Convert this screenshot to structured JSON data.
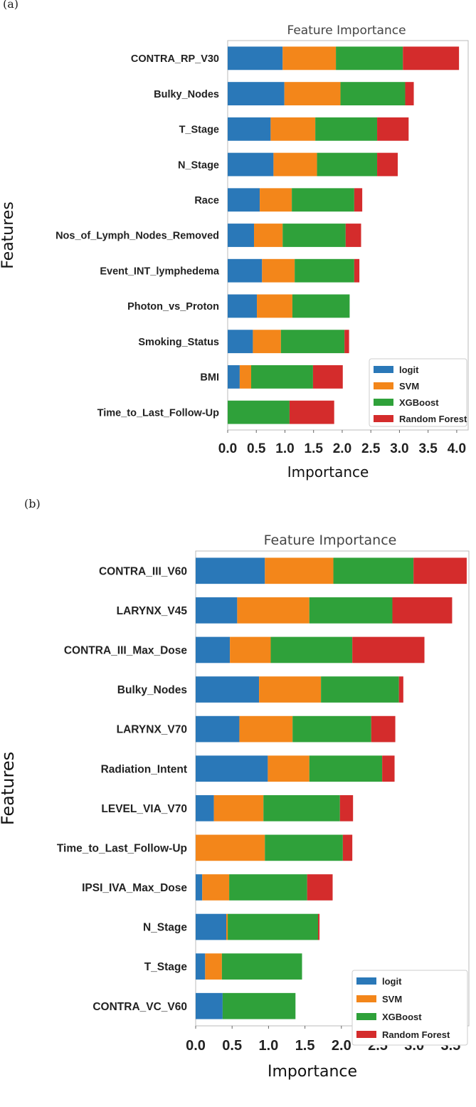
{
  "panels": [
    {
      "letter": "(a)"
    },
    {
      "letter": "(b)"
    }
  ],
  "colors": {
    "logit": "#2a78b8",
    "SVM": "#f3861a",
    "XGBoost": "#2fa13a",
    "Random Forest": "#d42c2c",
    "frame": "#bbbbbb"
  },
  "chart_data": [
    {
      "type": "bar",
      "orientation": "horizontal",
      "stacked": true,
      "title": "Feature Importance",
      "xlabel": "Importance",
      "ylabel": "Features",
      "xlim": [
        0,
        4.2
      ],
      "xticks": [
        "0.0",
        "0.5",
        "1.0",
        "1.5",
        "2.0",
        "2.5",
        "3.0",
        "3.5",
        "4.0"
      ],
      "legend": {
        "position": "bottom-right",
        "labels": [
          "logit",
          "SVM",
          "XGBoost",
          "Random Forest"
        ]
      },
      "categories": [
        "CONTRA_RP_V30",
        "Bulky_Nodes",
        "T_Stage",
        "N_Stage",
        "Race",
        "Nos_of_Lymph_Nodes_Removed",
        "Event_INT_lymphedema",
        "Photon_vs_Proton",
        "Smoking_Status",
        "BMI",
        "Time_to_Last_Follow-Up"
      ],
      "series": [
        {
          "name": "logit",
          "values": [
            0.96,
            0.99,
            0.75,
            0.8,
            0.56,
            0.46,
            0.6,
            0.51,
            0.44,
            0.21,
            0.0
          ]
        },
        {
          "name": "SVM",
          "values": [
            0.93,
            0.98,
            0.78,
            0.76,
            0.56,
            0.5,
            0.57,
            0.62,
            0.49,
            0.2,
            0.0
          ]
        },
        {
          "name": "XGBoost",
          "values": [
            1.17,
            1.13,
            1.08,
            1.05,
            1.09,
            1.1,
            1.04,
            1.0,
            1.11,
            1.08,
            1.08
          ]
        },
        {
          "name": "Random Forest",
          "values": [
            0.98,
            0.15,
            0.55,
            0.36,
            0.14,
            0.27,
            0.09,
            0.0,
            0.08,
            0.52,
            0.78
          ]
        }
      ]
    },
    {
      "type": "bar",
      "orientation": "horizontal",
      "stacked": true,
      "title": "Feature Importance",
      "xlabel": "Importance",
      "ylabel": "Features",
      "xlim": [
        0,
        3.75
      ],
      "xticks": [
        "0.0",
        "0.5",
        "1.0",
        "1.5",
        "2.0",
        "2.5",
        "3.0",
        "3.5"
      ],
      "legend": {
        "position": "bottom-right",
        "labels": [
          "logit",
          "SVM",
          "XGBoost",
          "Random Forest"
        ]
      },
      "categories": [
        "CONTRA_III_V60",
        "LARYNX_V45",
        "CONTRA_III_Max_Dose",
        "Bulky_Nodes",
        "LARYNX_V70",
        "Radiation_Intent",
        "LEVEL_VIA_V70",
        "Time_to_Last_Follow-Up",
        "IPSI_IVA_Max_Dose",
        "N_Stage",
        "T_Stage",
        "CONTRA_VC_V60"
      ],
      "series": [
        {
          "name": "logit",
          "values": [
            0.95,
            0.57,
            0.47,
            0.87,
            0.6,
            0.99,
            0.25,
            0.0,
            0.09,
            0.42,
            0.13,
            0.37
          ]
        },
        {
          "name": "SVM",
          "values": [
            0.94,
            0.99,
            0.56,
            0.85,
            0.73,
            0.57,
            0.68,
            0.95,
            0.37,
            0.02,
            0.23,
            0.0
          ]
        },
        {
          "name": "XGBoost",
          "values": [
            1.1,
            1.14,
            1.12,
            1.07,
            1.08,
            1.0,
            1.05,
            1.07,
            1.07,
            1.24,
            1.1,
            1.0
          ]
        },
        {
          "name": "Random Forest",
          "values": [
            0.73,
            0.82,
            0.99,
            0.06,
            0.33,
            0.17,
            0.18,
            0.13,
            0.35,
            0.02,
            0.0,
            0.0
          ]
        }
      ]
    }
  ]
}
